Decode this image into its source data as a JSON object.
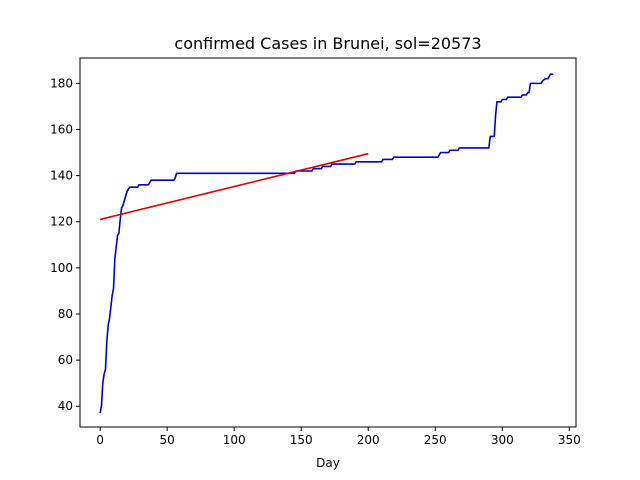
{
  "chart_data": {
    "type": "line",
    "title": "confirmed Cases in Brunei, sol=20573",
    "xlabel": "Day",
    "ylabel": "",
    "xlim": [
      -15,
      355
    ],
    "ylim": [
      31,
      191
    ],
    "xticks": [
      0,
      50,
      100,
      150,
      200,
      250,
      300,
      350
    ],
    "yticks": [
      40,
      60,
      80,
      100,
      120,
      140,
      160,
      180
    ],
    "grid": false,
    "legend": "none",
    "series": [
      {
        "color": "#0000cc",
        "points": [
          [
            0,
            37
          ],
          [
            1,
            40
          ],
          [
            2,
            50
          ],
          [
            3,
            54
          ],
          [
            4,
            56
          ],
          [
            5,
            68
          ],
          [
            6,
            75
          ],
          [
            7,
            78
          ],
          [
            8,
            83
          ],
          [
            9,
            88
          ],
          [
            10,
            91
          ],
          [
            11,
            104
          ],
          [
            12,
            109
          ],
          [
            13,
            114
          ],
          [
            14,
            115
          ],
          [
            15,
            121
          ],
          [
            16,
            126
          ],
          [
            17,
            127
          ],
          [
            18,
            129
          ],
          [
            19,
            131
          ],
          [
            20,
            133
          ],
          [
            21,
            134
          ],
          [
            22,
            135
          ],
          [
            28,
            135
          ],
          [
            29,
            136
          ],
          [
            36,
            136
          ],
          [
            37,
            137
          ],
          [
            38,
            138
          ],
          [
            55,
            138
          ],
          [
            56,
            139
          ],
          [
            57,
            141
          ],
          [
            145,
            141
          ],
          [
            146,
            142
          ],
          [
            158,
            142
          ],
          [
            159,
            143
          ],
          [
            165,
            143
          ],
          [
            166,
            144
          ],
          [
            172,
            144
          ],
          [
            173,
            145
          ],
          [
            190,
            145
          ],
          [
            191,
            146
          ],
          [
            210,
            146
          ],
          [
            211,
            147
          ],
          [
            218,
            147
          ],
          [
            219,
            148
          ],
          [
            252,
            148
          ],
          [
            253,
            149
          ],
          [
            254,
            150
          ],
          [
            260,
            150
          ],
          [
            261,
            151
          ],
          [
            267,
            151
          ],
          [
            268,
            152
          ],
          [
            290,
            152
          ],
          [
            291,
            157
          ],
          [
            294,
            157
          ],
          [
            295,
            166
          ],
          [
            296,
            172
          ],
          [
            299,
            172
          ],
          [
            300,
            173
          ],
          [
            303,
            173
          ],
          [
            304,
            174
          ],
          [
            314,
            174
          ],
          [
            315,
            175
          ],
          [
            318,
            175
          ],
          [
            319,
            176
          ],
          [
            320,
            176
          ],
          [
            321,
            180
          ],
          [
            329,
            180
          ],
          [
            330,
            181
          ],
          [
            332,
            182
          ],
          [
            334,
            182
          ],
          [
            335,
            183
          ],
          [
            336,
            184
          ],
          [
            338,
            184
          ]
        ]
      },
      {
        "color": "#dd0000",
        "points": [
          [
            0,
            121
          ],
          [
            200,
            149.5
          ]
        ]
      }
    ]
  }
}
